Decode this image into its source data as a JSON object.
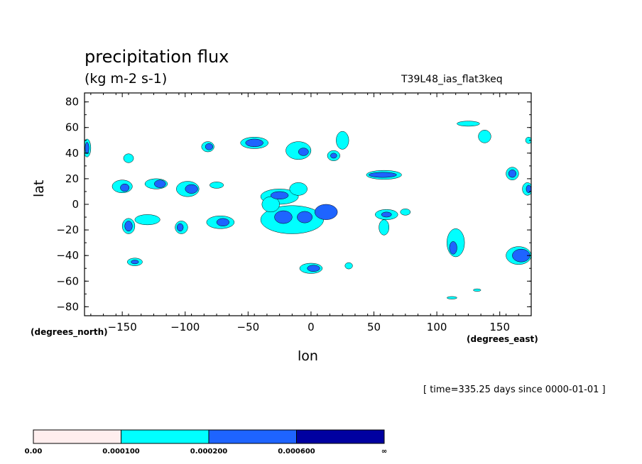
{
  "chart_data": {
    "type": "heatmap",
    "title": "precipitation flux",
    "units": "(kg m-2 s-1)",
    "run_label": "T39L48_ias_flat3keq",
    "xlabel": "lon",
    "xlabel_note": "(degrees_east)",
    "ylabel": "lat",
    "ylabel_note": "(degrees_north)",
    "time_note": "[ time=335.25 days since 0000-01-01 ]",
    "xlim": [
      -180,
      175
    ],
    "ylim": [
      -87,
      87
    ],
    "xticks": [
      -150,
      -100,
      -50,
      0,
      50,
      100,
      150
    ],
    "yticks": [
      80,
      60,
      40,
      20,
      0,
      -20,
      -40,
      -60,
      -80
    ],
    "legend": {
      "placement": "bottom-left",
      "levels": [
        "0.00",
        "0.000100",
        "0.000200",
        "0.000600",
        "∞"
      ],
      "colors": [
        "#ffeeee",
        "#00ffff",
        "#1e64ff",
        "#0000a0"
      ]
    },
    "regions": [
      {
        "level": 1,
        "lon": -178,
        "lat": 44,
        "w": 6,
        "h": 14
      },
      {
        "level": 2,
        "lon": -178,
        "lat": 44,
        "w": 3,
        "h": 9
      },
      {
        "level": 1,
        "lon": -145,
        "lat": 36,
        "w": 8,
        "h": 7
      },
      {
        "level": 1,
        "lon": -150,
        "lat": 14,
        "w": 16,
        "h": 10
      },
      {
        "level": 2,
        "lon": -148,
        "lat": 13,
        "w": 7,
        "h": 6
      },
      {
        "level": 1,
        "lon": -123,
        "lat": 16,
        "w": 18,
        "h": 8
      },
      {
        "level": 2,
        "lon": -120,
        "lat": 16,
        "w": 9,
        "h": 6
      },
      {
        "level": 1,
        "lon": -98,
        "lat": 12,
        "w": 18,
        "h": 12
      },
      {
        "level": 2,
        "lon": -95,
        "lat": 12,
        "w": 10,
        "h": 7
      },
      {
        "level": 1,
        "lon": -75,
        "lat": 15,
        "w": 11,
        "h": 5
      },
      {
        "level": 1,
        "lon": -82,
        "lat": 45,
        "w": 10,
        "h": 8
      },
      {
        "level": 2,
        "lon": -81,
        "lat": 45,
        "w": 6,
        "h": 5
      },
      {
        "level": 1,
        "lon": -45,
        "lat": 48,
        "w": 22,
        "h": 9
      },
      {
        "level": 2,
        "lon": -45,
        "lat": 48,
        "w": 14,
        "h": 6
      },
      {
        "level": 1,
        "lon": -145,
        "lat": -17,
        "w": 10,
        "h": 12
      },
      {
        "level": 2,
        "lon": -145,
        "lat": -17,
        "w": 6,
        "h": 8
      },
      {
        "level": 1,
        "lon": -130,
        "lat": -12,
        "w": 20,
        "h": 8
      },
      {
        "level": 1,
        "lon": -103,
        "lat": -18,
        "w": 10,
        "h": 10
      },
      {
        "level": 2,
        "lon": -104,
        "lat": -18,
        "w": 5,
        "h": 6
      },
      {
        "level": 1,
        "lon": -72,
        "lat": -14,
        "w": 22,
        "h": 10
      },
      {
        "level": 2,
        "lon": -70,
        "lat": -14,
        "w": 10,
        "h": 6
      },
      {
        "level": 1,
        "lon": -140,
        "lat": -45,
        "w": 12,
        "h": 6
      },
      {
        "level": 2,
        "lon": -140,
        "lat": -45,
        "w": 6,
        "h": 3
      },
      {
        "level": 1,
        "lon": -10,
        "lat": 42,
        "w": 20,
        "h": 14
      },
      {
        "level": 2,
        "lon": -6,
        "lat": 41,
        "w": 8,
        "h": 6
      },
      {
        "level": 1,
        "lon": 25,
        "lat": 50,
        "w": 10,
        "h": 14
      },
      {
        "level": 1,
        "lon": 18,
        "lat": 38,
        "w": 10,
        "h": 8
      },
      {
        "level": 2,
        "lon": 18,
        "lat": 38,
        "w": 5,
        "h": 4
      },
      {
        "level": 1,
        "lon": -25,
        "lat": 6,
        "w": 30,
        "h": 12
      },
      {
        "level": 2,
        "lon": -25,
        "lat": 7,
        "w": 14,
        "h": 6
      },
      {
        "level": 1,
        "lon": -10,
        "lat": 12,
        "w": 14,
        "h": 10
      },
      {
        "level": 1,
        "lon": -15,
        "lat": -12,
        "w": 50,
        "h": 22
      },
      {
        "level": 2,
        "lon": -22,
        "lat": -10,
        "w": 14,
        "h": 10
      },
      {
        "level": 2,
        "lon": -5,
        "lat": -10,
        "w": 12,
        "h": 9
      },
      {
        "level": 2,
        "lon": 12,
        "lat": -6,
        "w": 18,
        "h": 12
      },
      {
        "level": 1,
        "lon": -32,
        "lat": 0,
        "w": 14,
        "h": 12
      },
      {
        "level": 1,
        "lon": 0,
        "lat": -50,
        "w": 18,
        "h": 8
      },
      {
        "level": 2,
        "lon": 2,
        "lat": -50,
        "w": 10,
        "h": 5
      },
      {
        "level": 1,
        "lon": 58,
        "lat": 23,
        "w": 28,
        "h": 7
      },
      {
        "level": 2,
        "lon": 57,
        "lat": 23,
        "w": 22,
        "h": 4
      },
      {
        "level": 1,
        "lon": 60,
        "lat": -8,
        "w": 18,
        "h": 8
      },
      {
        "level": 2,
        "lon": 60,
        "lat": -8,
        "w": 8,
        "h": 4
      },
      {
        "level": 1,
        "lon": 75,
        "lat": -6,
        "w": 8,
        "h": 5
      },
      {
        "level": 1,
        "lon": 58,
        "lat": -18,
        "w": 8,
        "h": 12
      },
      {
        "level": 1,
        "lon": 115,
        "lat": -30,
        "w": 14,
        "h": 22
      },
      {
        "level": 2,
        "lon": 113,
        "lat": -34,
        "w": 6,
        "h": 10
      },
      {
        "level": 1,
        "lon": 125,
        "lat": 63,
        "w": 18,
        "h": 4
      },
      {
        "level": 1,
        "lon": 138,
        "lat": 53,
        "w": 10,
        "h": 10
      },
      {
        "level": 1,
        "lon": 160,
        "lat": 24,
        "w": 10,
        "h": 10
      },
      {
        "level": 2,
        "lon": 160,
        "lat": 24,
        "w": 6,
        "h": 6
      },
      {
        "level": 1,
        "lon": 172,
        "lat": 12,
        "w": 8,
        "h": 10
      },
      {
        "level": 2,
        "lon": 173,
        "lat": 12,
        "w": 4,
        "h": 6
      },
      {
        "level": 1,
        "lon": 165,
        "lat": -40,
        "w": 20,
        "h": 14
      },
      {
        "level": 2,
        "lon": 167,
        "lat": -40,
        "w": 14,
        "h": 10
      },
      {
        "level": 1,
        "lon": 112,
        "lat": -73,
        "w": 8,
        "h": 2
      },
      {
        "level": 1,
        "lon": 132,
        "lat": -67,
        "w": 6,
        "h": 2
      },
      {
        "level": 1,
        "lon": 30,
        "lat": -48,
        "w": 6,
        "h": 5
      },
      {
        "level": 1,
        "lon": 173,
        "lat": 50,
        "w": 5,
        "h": 5
      }
    ]
  }
}
